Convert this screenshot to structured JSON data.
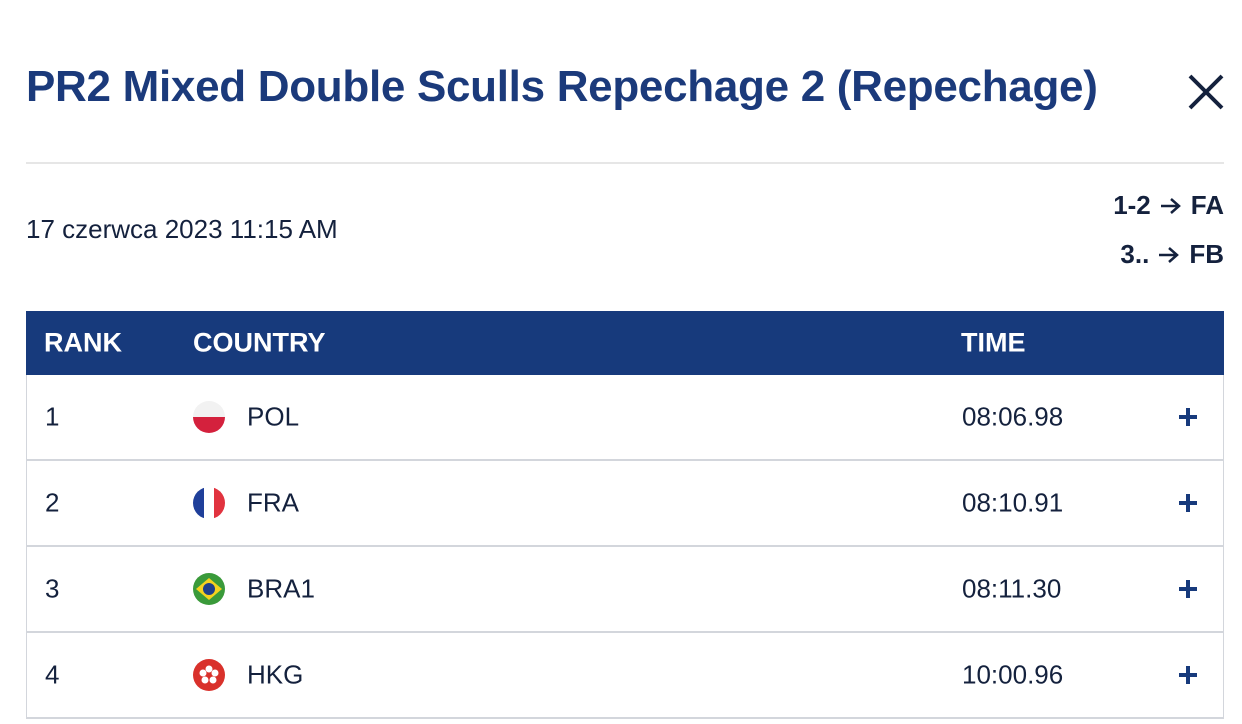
{
  "header": {
    "title": "PR2 Mixed Double Sculls Repechage 2 (Repechage)"
  },
  "date": "17 czerwca 2023 11:15 AM",
  "progression": [
    {
      "ranks": "1-2",
      "final": "FA"
    },
    {
      "ranks": "3..",
      "final": "FB"
    }
  ],
  "table": {
    "columns": [
      "RANK",
      "COUNTRY",
      "TIME"
    ],
    "rows": [
      [
        "1",
        "POL",
        "08:06.98"
      ],
      [
        "2",
        "FRA",
        "08:10.91"
      ],
      [
        "3",
        "BRA1",
        "08:11.30"
      ],
      [
        "4",
        "HKG",
        "10:00.96"
      ]
    ]
  }
}
